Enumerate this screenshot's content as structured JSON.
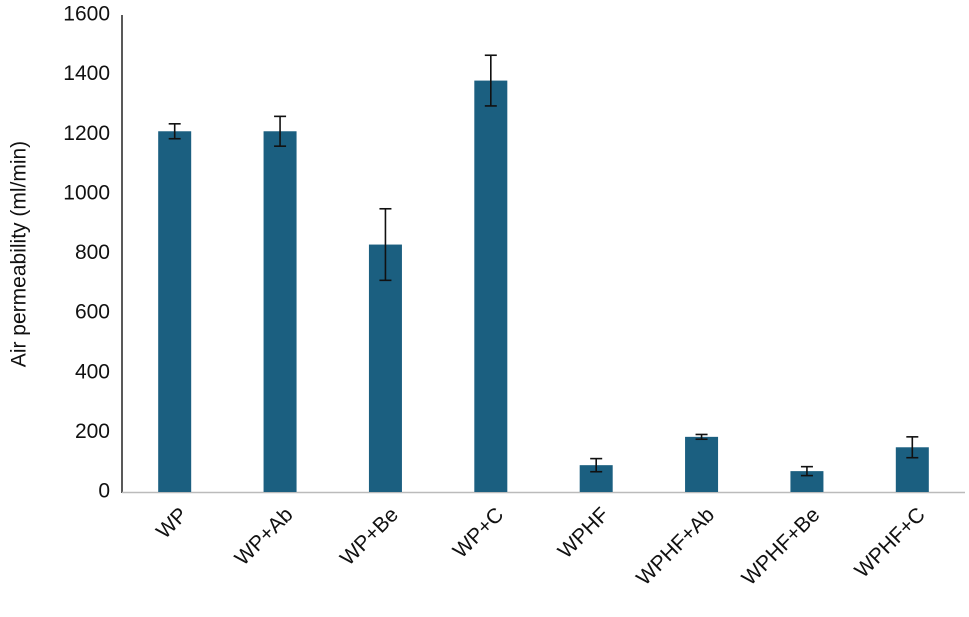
{
  "chart_data": {
    "type": "bar",
    "ylabel": "Air permeability (ml/min)",
    "categories": [
      "WP",
      "WP+Ab",
      "WP+Be",
      "WP+C",
      "WPHF",
      "WPHF+Ab",
      "WPHF+Be",
      "WPHF+C"
    ],
    "values": [
      1210,
      1210,
      830,
      1380,
      90,
      185,
      70,
      150
    ],
    "errors": [
      25,
      50,
      120,
      85,
      22,
      8,
      15,
      35
    ],
    "color": "#1b5f80",
    "ylim": [
      0,
      1600
    ],
    "yticks": [
      0,
      200,
      400,
      600,
      800,
      1000,
      1200,
      1400,
      1600
    ],
    "grid": false
  }
}
